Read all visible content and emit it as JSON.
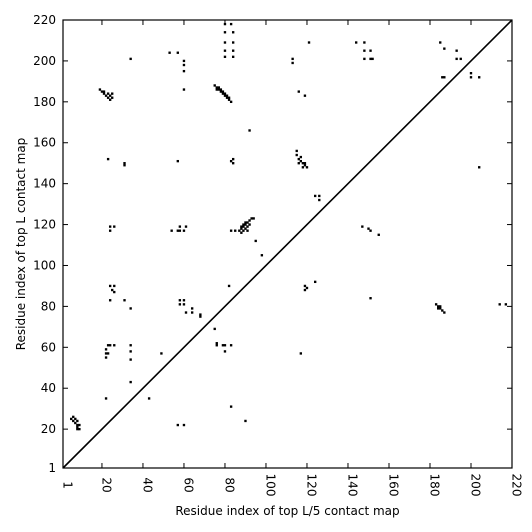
{
  "chart_data": {
    "type": "scatter",
    "xlabel": "Residue index of top L/5 contact map",
    "ylabel": "Residue index of top L contact map",
    "xlim": [
      1,
      220
    ],
    "ylim": [
      1,
      220
    ],
    "x_ticks": [
      1,
      20,
      40,
      60,
      80,
      100,
      120,
      140,
      160,
      180,
      200,
      220
    ],
    "y_ticks": [
      1,
      20,
      40,
      60,
      80,
      100,
      120,
      140,
      160,
      180,
      200,
      220
    ],
    "x_tick_labels": [
      "1",
      "20",
      "40",
      "60",
      "80",
      "100",
      "120",
      "140",
      "160",
      "180",
      "200",
      "220"
    ],
    "y_tick_labels": [
      "1",
      "20",
      "40",
      "60",
      "80",
      "100",
      "120",
      "140",
      "160",
      "180",
      "200",
      "220"
    ],
    "diagonal": [
      [
        1,
        1
      ],
      [
        220,
        220
      ]
    ],
    "grid": false,
    "marker": "square",
    "marker_color": "#000000",
    "series": [
      {
        "points": [
          [
            5,
            25
          ],
          [
            6,
            24
          ],
          [
            6,
            26
          ],
          [
            7,
            23
          ],
          [
            7,
            25
          ],
          [
            8,
            22
          ],
          [
            8,
            24
          ],
          [
            8,
            20
          ],
          [
            8,
            21
          ],
          [
            9,
            20
          ],
          [
            9,
            22
          ],
          [
            22,
            35
          ],
          [
            22,
            57
          ],
          [
            22,
            59
          ],
          [
            22,
            55
          ],
          [
            23,
            61
          ],
          [
            23,
            57
          ],
          [
            24,
            61
          ],
          [
            24,
            83
          ],
          [
            24,
            90
          ],
          [
            25,
            88
          ],
          [
            26,
            87
          ],
          [
            26,
            90
          ],
          [
            26,
            61
          ],
          [
            24,
            117
          ],
          [
            24,
            119
          ],
          [
            26,
            119
          ],
          [
            23,
            152
          ],
          [
            31,
            149
          ],
          [
            31,
            150
          ],
          [
            31,
            83
          ],
          [
            19,
            186
          ],
          [
            20,
            185
          ],
          [
            21,
            185
          ],
          [
            21,
            184
          ],
          [
            22,
            183
          ],
          [
            23,
            182
          ],
          [
            23,
            184
          ],
          [
            24,
            181
          ],
          [
            24,
            183
          ],
          [
            25,
            182
          ],
          [
            25,
            184
          ],
          [
            34,
            201
          ],
          [
            34,
            79
          ],
          [
            34,
            61
          ],
          [
            34,
            58
          ],
          [
            34,
            54
          ],
          [
            34,
            43
          ],
          [
            43,
            35
          ],
          [
            49,
            57
          ],
          [
            53,
            204
          ],
          [
            57,
            204
          ],
          [
            60,
            200
          ],
          [
            60,
            198
          ],
          [
            60,
            195
          ],
          [
            60,
            186
          ],
          [
            57,
            151
          ],
          [
            54,
            117
          ],
          [
            57,
            117
          ],
          [
            58,
            117
          ],
          [
            58,
            119
          ],
          [
            60,
            117
          ],
          [
            61,
            119
          ],
          [
            58,
            83
          ],
          [
            58,
            81
          ],
          [
            60,
            83
          ],
          [
            60,
            81
          ],
          [
            61,
            77
          ],
          [
            64,
            77
          ],
          [
            64,
            79
          ],
          [
            68,
            75
          ],
          [
            68,
            76
          ],
          [
            57,
            22
          ],
          [
            60,
            22
          ],
          [
            75,
            69
          ],
          [
            76,
            62
          ],
          [
            76,
            61
          ],
          [
            79,
            61
          ],
          [
            80,
            61
          ],
          [
            80,
            58
          ],
          [
            83,
            61
          ],
          [
            83,
            31
          ],
          [
            90,
            24
          ],
          [
            82,
            90
          ],
          [
            80,
            218
          ],
          [
            80,
            214
          ],
          [
            80,
            209
          ],
          [
            80,
            205
          ],
          [
            80,
            202
          ],
          [
            83,
            218
          ],
          [
            84,
            214
          ],
          [
            84,
            209
          ],
          [
            84,
            205
          ],
          [
            84,
            202
          ],
          [
            75,
            188
          ],
          [
            76,
            187
          ],
          [
            77,
            186
          ],
          [
            78,
            185
          ],
          [
            79,
            184
          ],
          [
            80,
            183
          ],
          [
            81,
            182
          ],
          [
            82,
            181
          ],
          [
            83,
            180
          ],
          [
            76,
            186
          ],
          [
            77,
            187
          ],
          [
            78,
            186
          ],
          [
            79,
            185
          ],
          [
            80,
            184
          ],
          [
            81,
            183
          ],
          [
            82,
            182
          ],
          [
            83,
            151
          ],
          [
            84,
            150
          ],
          [
            84,
            152
          ],
          [
            92,
            166
          ],
          [
            83,
            117
          ],
          [
            85,
            117
          ],
          [
            87,
            117
          ],
          [
            88,
            118
          ],
          [
            89,
            119
          ],
          [
            90,
            120
          ],
          [
            91,
            121
          ],
          [
            92,
            122
          ],
          [
            93,
            123
          ],
          [
            94,
            123
          ],
          [
            88,
            116
          ],
          [
            89,
            117
          ],
          [
            90,
            118
          ],
          [
            91,
            119
          ],
          [
            92,
            120
          ],
          [
            89,
            120
          ],
          [
            90,
            121
          ],
          [
            91,
            117
          ],
          [
            88,
            119
          ],
          [
            95,
            112
          ],
          [
            98,
            105
          ],
          [
            113,
            199
          ],
          [
            113,
            201
          ],
          [
            121,
            209
          ],
          [
            116,
            185
          ],
          [
            119,
            183
          ],
          [
            115,
            156
          ],
          [
            115,
            154
          ],
          [
            116,
            152
          ],
          [
            117,
            151
          ],
          [
            118,
            150
          ],
          [
            119,
            149
          ],
          [
            120,
            148
          ],
          [
            116,
            150
          ],
          [
            117,
            153
          ],
          [
            118,
            148
          ],
          [
            119,
            150
          ],
          [
            124,
            134
          ],
          [
            126,
            134
          ],
          [
            126,
            132
          ],
          [
            119,
            90
          ],
          [
            120,
            89
          ],
          [
            119,
            88
          ],
          [
            117,
            57
          ],
          [
            124,
            92
          ],
          [
            144,
            209
          ],
          [
            148,
            209
          ],
          [
            148,
            205
          ],
          [
            151,
            205
          ],
          [
            148,
            201
          ],
          [
            151,
            201
          ],
          [
            152,
            201
          ],
          [
            147,
            119
          ],
          [
            150,
            118
          ],
          [
            151,
            117
          ],
          [
            155,
            115
          ],
          [
            151,
            84
          ],
          [
            183,
            81
          ],
          [
            184,
            80
          ],
          [
            185,
            79
          ],
          [
            186,
            78
          ],
          [
            187,
            77
          ],
          [
            184,
            79
          ],
          [
            185,
            80
          ],
          [
            185,
            209
          ],
          [
            187,
            206
          ],
          [
            186,
            192
          ],
          [
            187,
            192
          ],
          [
            193,
            205
          ],
          [
            193,
            201
          ],
          [
            195,
            201
          ],
          [
            200,
            194
          ],
          [
            200,
            192
          ],
          [
            204,
            192
          ],
          [
            204,
            148
          ],
          [
            214,
            81
          ],
          [
            217,
            81
          ]
        ]
      }
    ]
  }
}
